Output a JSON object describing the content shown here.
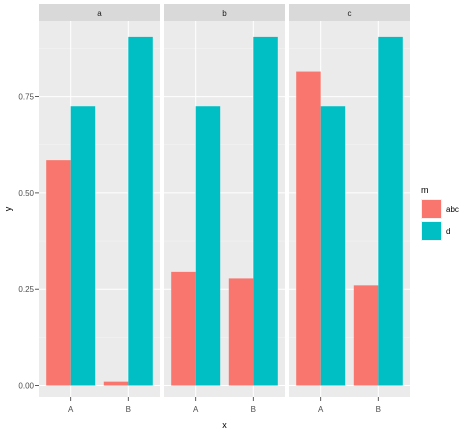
{
  "chart_data": {
    "type": "bar",
    "facet_variable": "m? no",
    "facets": [
      "a",
      "b",
      "c"
    ],
    "categories": [
      "A",
      "B"
    ],
    "xlabel": "x",
    "ylabel": "y",
    "ylim": [
      0,
      0.92
    ],
    "yticks": [
      0.0,
      0.25,
      0.5,
      0.75
    ],
    "ytick_labels": [
      "0.00",
      "0.25",
      "0.50",
      "0.75"
    ],
    "grid": true,
    "legend": {
      "title": "m",
      "placement": "right",
      "entries": [
        "abc",
        "d"
      ]
    },
    "series": [
      {
        "name": "abc",
        "color": "#F8766D",
        "values": {
          "a": [
            0.585,
            0.01
          ],
          "b": [
            0.295,
            0.278
          ],
          "c": [
            0.815,
            0.26
          ]
        }
      },
      {
        "name": "d",
        "color": "#00BFC4",
        "values": {
          "a": [
            0.725,
            0.905
          ],
          "b": [
            0.725,
            0.905
          ],
          "c": [
            0.725,
            0.905
          ]
        }
      }
    ]
  },
  "colors": {
    "panel_background": "#EBEBEB",
    "strip_background": "#D9D9D9",
    "grid_major": "#FFFFFF",
    "text": "#4D4D4D"
  }
}
